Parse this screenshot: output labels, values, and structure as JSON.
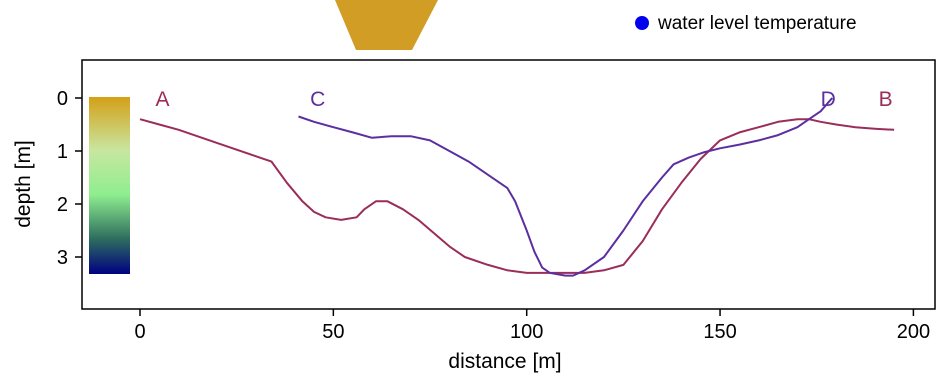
{
  "legend": {
    "label": "water level temperature",
    "color": "#0000ee"
  },
  "chart_data": {
    "type": "line",
    "title": "",
    "xlabel": "distance [m]",
    "ylabel": "depth [m]",
    "xlim": [
      -15,
      203
    ],
    "ylim": [
      0,
      4
    ],
    "y_inverted": true,
    "x_ticks": [
      0,
      50,
      100,
      150,
      200
    ],
    "y_ticks": [
      0,
      1,
      2,
      3
    ],
    "grid": false,
    "legend_position": "top-right",
    "colorbar": {
      "colors": [
        "#d4a017",
        "#c8e6a0",
        "#8fee8f",
        "#2e6e5e",
        "#000080"
      ],
      "position": "left"
    },
    "series": [
      {
        "start_label": "A",
        "end_label": "B",
        "color": "#9a2d5a",
        "x": [
          0,
          5,
          10,
          20,
          30,
          34,
          38,
          42,
          45,
          48,
          52,
          56,
          58,
          61,
          64,
          68,
          72,
          76,
          80,
          84,
          90,
          95,
          100,
          105,
          110,
          115,
          120,
          125,
          130,
          135,
          140,
          145,
          150,
          155,
          160,
          165,
          170,
          173,
          176,
          180,
          185,
          190,
          195
        ],
        "y": [
          0.4,
          0.5,
          0.6,
          0.85,
          1.1,
          1.2,
          1.6,
          1.95,
          2.15,
          2.25,
          2.3,
          2.25,
          2.1,
          1.95,
          1.95,
          2.1,
          2.3,
          2.55,
          2.8,
          3.0,
          3.15,
          3.25,
          3.3,
          3.3,
          3.3,
          3.3,
          3.25,
          3.15,
          2.7,
          2.1,
          1.6,
          1.15,
          0.8,
          0.65,
          0.55,
          0.45,
          0.4,
          0.4,
          0.45,
          0.5,
          0.55,
          0.58,
          0.6
        ]
      },
      {
        "start_label": "C",
        "end_label": "D",
        "color": "#5b2fa0",
        "x": [
          41,
          45,
          50,
          55,
          60,
          65,
          70,
          75,
          80,
          85,
          90,
          95,
          97,
          100,
          102,
          104,
          106,
          110,
          112,
          115,
          120,
          125,
          130,
          135,
          138,
          142,
          146,
          150,
          155,
          160,
          165,
          170,
          173,
          176,
          179
        ],
        "y": [
          0.35,
          0.45,
          0.55,
          0.65,
          0.75,
          0.72,
          0.72,
          0.8,
          1.0,
          1.2,
          1.45,
          1.7,
          1.95,
          2.5,
          2.9,
          3.2,
          3.3,
          3.35,
          3.35,
          3.25,
          3.0,
          2.5,
          1.95,
          1.5,
          1.25,
          1.12,
          1.02,
          0.95,
          0.88,
          0.8,
          0.7,
          0.55,
          0.4,
          0.25,
          0.0
        ]
      }
    ],
    "annotations": [
      {
        "text": "A",
        "x": 4,
        "y": 0.0,
        "color": "#9a2d5a"
      },
      {
        "text": "B",
        "x": 191,
        "y": 0.0,
        "color": "#9a2d5a"
      },
      {
        "text": "C",
        "x": 44,
        "y": 0.0,
        "color": "#5b2fa0"
      },
      {
        "text": "D",
        "x": 176,
        "y": 0.0,
        "color": "#5b2fa0"
      }
    ]
  }
}
